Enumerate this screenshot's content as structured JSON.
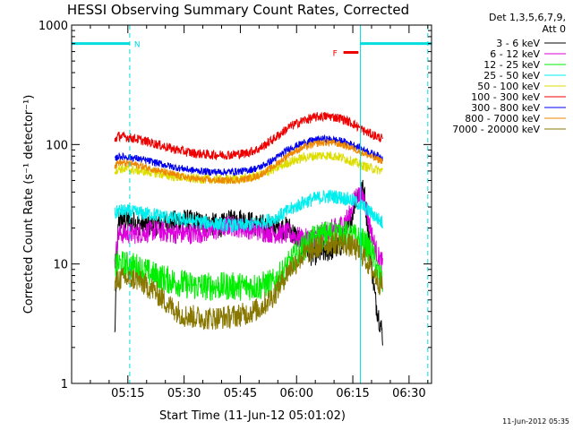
{
  "chart_data": {
    "type": "line",
    "title": "HESSI Observing Summary Count Rates, Corrected",
    "xlabel": "Start Time (11-Jun-12 05:01:02)",
    "ylabel": "Corrected Count Rate (s⁻¹ detector⁻¹)",
    "y_scale": "log",
    "ylim": [
      1,
      1000
    ],
    "xlim_minutes": [
      0,
      96
    ],
    "x_ticks": [
      {
        "minute": 15,
        "label": "05:15"
      },
      {
        "minute": 30,
        "label": "05:30"
      },
      {
        "minute": 45,
        "label": "05:45"
      },
      {
        "minute": 60,
        "label": "06:00"
      },
      {
        "minute": 75,
        "label": "06:15"
      },
      {
        "minute": 90,
        "label": "06:30"
      }
    ],
    "y_ticks": [
      {
        "value": 1,
        "label": "1"
      },
      {
        "value": 10,
        "label": "10"
      },
      {
        "value": 100,
        "label": "100"
      },
      {
        "value": 1000,
        "label": "1000"
      }
    ],
    "legend_header": [
      "Det 1,3,5,6,7,9,",
      "Att 0"
    ],
    "legend_placement": "right",
    "series": [
      {
        "name": "3 - 6 keV",
        "color": "#000000",
        "noise": 0.1,
        "points": [
          [
            11.5,
            2.5
          ],
          [
            12.5,
            24
          ],
          [
            17,
            22
          ],
          [
            20,
            21
          ],
          [
            25,
            22
          ],
          [
            30,
            23
          ],
          [
            35,
            22
          ],
          [
            40,
            21
          ],
          [
            44,
            24
          ],
          [
            46,
            23
          ],
          [
            50,
            21
          ],
          [
            55,
            20
          ],
          [
            58,
            20
          ],
          [
            62,
            14
          ],
          [
            64,
            12
          ],
          [
            67,
            12.5
          ],
          [
            70,
            13.5
          ],
          [
            72,
            14.5
          ],
          [
            74,
            20
          ],
          [
            76,
            38
          ],
          [
            78,
            42
          ],
          [
            79,
            20
          ],
          [
            81,
            5
          ],
          [
            83,
            2.5
          ]
        ]
      },
      {
        "name": "6 - 12 keV",
        "color": "#dd00dd",
        "noise": 0.09,
        "points": [
          [
            11.5,
            10
          ],
          [
            12.5,
            18
          ],
          [
            17,
            18
          ],
          [
            22,
            19
          ],
          [
            28,
            18
          ],
          [
            33,
            18
          ],
          [
            38,
            19
          ],
          [
            42,
            21
          ],
          [
            46,
            20
          ],
          [
            50,
            19
          ],
          [
            55,
            18
          ],
          [
            58,
            18
          ],
          [
            62,
            16
          ],
          [
            65,
            17
          ],
          [
            68,
            19
          ],
          [
            71,
            20
          ],
          [
            74,
            25
          ],
          [
            76,
            38
          ],
          [
            78,
            36
          ],
          [
            80,
            18
          ],
          [
            81.5,
            12
          ],
          [
            83,
            10
          ]
        ]
      },
      {
        "name": "12 - 25 keV",
        "color": "#00ee00",
        "noise": 0.12,
        "points": [
          [
            11.5,
            9.5
          ],
          [
            12.5,
            10
          ],
          [
            17,
            9.5
          ],
          [
            22,
            8
          ],
          [
            28,
            7
          ],
          [
            33,
            6.5
          ],
          [
            38,
            6.5
          ],
          [
            42,
            6.5
          ],
          [
            46,
            6.5
          ],
          [
            50,
            6.5
          ],
          [
            54,
            7
          ],
          [
            57,
            9
          ],
          [
            60,
            12
          ],
          [
            63,
            15
          ],
          [
            66,
            17
          ],
          [
            69,
            18
          ],
          [
            72,
            18
          ],
          [
            75,
            17
          ],
          [
            78,
            15
          ],
          [
            80,
            13
          ],
          [
            82,
            8
          ],
          [
            83,
            7
          ]
        ]
      },
      {
        "name": "25 - 50 keV",
        "color": "#00eeee",
        "noise": 0.06,
        "points": [
          [
            11.5,
            26
          ],
          [
            12.5,
            28
          ],
          [
            17,
            27
          ],
          [
            22,
            26
          ],
          [
            27,
            24
          ],
          [
            32,
            23
          ],
          [
            37,
            22
          ],
          [
            42,
            21
          ],
          [
            46,
            21
          ],
          [
            50,
            22
          ],
          [
            54,
            24
          ],
          [
            58,
            28
          ],
          [
            62,
            33
          ],
          [
            66,
            36
          ],
          [
            69,
            37
          ],
          [
            72,
            36
          ],
          [
            75,
            34
          ],
          [
            78,
            30
          ],
          [
            81,
            25
          ],
          [
            83,
            22
          ]
        ]
      },
      {
        "name": "50 - 100 keV",
        "color": "#dddd00",
        "noise": 0.04,
        "points": [
          [
            11.5,
            60
          ],
          [
            12.5,
            63
          ],
          [
            17,
            61
          ],
          [
            22,
            58
          ],
          [
            27,
            54
          ],
          [
            32,
            52
          ],
          [
            37,
            51
          ],
          [
            42,
            51
          ],
          [
            46,
            52
          ],
          [
            50,
            55
          ],
          [
            54,
            62
          ],
          [
            58,
            71
          ],
          [
            62,
            78
          ],
          [
            66,
            81
          ],
          [
            69,
            81
          ],
          [
            72,
            78
          ],
          [
            75,
            72
          ],
          [
            78,
            66
          ],
          [
            81,
            62
          ],
          [
            83,
            60
          ]
        ]
      },
      {
        "name": "100 - 300 keV",
        "color": "#ee0000",
        "noise": 0.04,
        "points": [
          [
            11.5,
            110
          ],
          [
            12.5,
            118
          ],
          [
            17,
            112
          ],
          [
            22,
            102
          ],
          [
            27,
            92
          ],
          [
            32,
            85
          ],
          [
            37,
            82
          ],
          [
            42,
            82
          ],
          [
            46,
            84
          ],
          [
            50,
            92
          ],
          [
            54,
            112
          ],
          [
            58,
            140
          ],
          [
            62,
            160
          ],
          [
            66,
            172
          ],
          [
            69,
            172
          ],
          [
            72,
            165
          ],
          [
            75,
            150
          ],
          [
            78,
            130
          ],
          [
            81,
            118
          ],
          [
            83,
            112
          ]
        ]
      },
      {
        "name": "300 - 800 keV",
        "color": "#0000ee",
        "noise": 0.03,
        "points": [
          [
            11.5,
            74
          ],
          [
            12.5,
            80
          ],
          [
            17,
            77
          ],
          [
            22,
            71
          ],
          [
            27,
            65
          ],
          [
            32,
            61
          ],
          [
            37,
            59
          ],
          [
            42,
            59
          ],
          [
            46,
            60
          ],
          [
            50,
            64
          ],
          [
            54,
            75
          ],
          [
            58,
            92
          ],
          [
            62,
            104
          ],
          [
            66,
            111
          ],
          [
            69,
            111
          ],
          [
            72,
            107
          ],
          [
            75,
            100
          ],
          [
            78,
            90
          ],
          [
            81,
            82
          ],
          [
            83,
            78
          ]
        ]
      },
      {
        "name": "800 - 7000 keV",
        "color": "#ee8800",
        "noise": 0.03,
        "points": [
          [
            11.5,
            66
          ],
          [
            12.5,
            71
          ],
          [
            17,
            68
          ],
          [
            22,
            62
          ],
          [
            27,
            56
          ],
          [
            32,
            52
          ],
          [
            37,
            50
          ],
          [
            42,
            50
          ],
          [
            46,
            51
          ],
          [
            50,
            55
          ],
          [
            54,
            66
          ],
          [
            58,
            83
          ],
          [
            62,
            95
          ],
          [
            66,
            103
          ],
          [
            69,
            104
          ],
          [
            72,
            100
          ],
          [
            75,
            93
          ],
          [
            78,
            84
          ],
          [
            81,
            76
          ],
          [
            83,
            73
          ]
        ]
      },
      {
        "name": "7000 - 20000 keV",
        "color": "#887700",
        "noise": 0.1,
        "points": [
          [
            11.5,
            6.5
          ],
          [
            12.5,
            7.5
          ],
          [
            17,
            7.5
          ],
          [
            22,
            6
          ],
          [
            26,
            4.5
          ],
          [
            30,
            3.7
          ],
          [
            36,
            3.5
          ],
          [
            42,
            3.6
          ],
          [
            46,
            3.8
          ],
          [
            50,
            4.2
          ],
          [
            54,
            5.5
          ],
          [
            58,
            9
          ],
          [
            62,
            12
          ],
          [
            66,
            14
          ],
          [
            69,
            15
          ],
          [
            72,
            15
          ],
          [
            75,
            14
          ],
          [
            78,
            11.5
          ],
          [
            80,
            9
          ],
          [
            82,
            7
          ],
          [
            83,
            6.5
          ]
        ]
      }
    ],
    "annotations": {
      "flag_N": {
        "label": "N",
        "color": "#00dddd",
        "segments": [
          [
            0,
            15.5
          ],
          [
            77,
            96
          ]
        ],
        "y": 700
      },
      "flag_F": {
        "label": "F",
        "color": "#ee0000",
        "segment": [
          72.5,
          76.5
        ],
        "y": 590
      },
      "vlines_solid": [
        0,
        77
      ],
      "vlines_dashed": [
        15.5,
        95
      ]
    }
  },
  "timestamp": "11-Jun-2012 05:35"
}
